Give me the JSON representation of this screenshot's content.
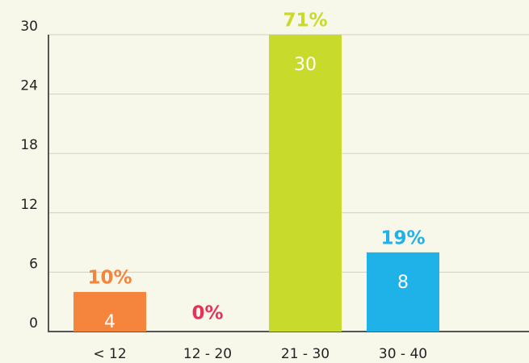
{
  "chart_data": {
    "type": "bar",
    "categories": [
      "< 12",
      "12 - 20",
      "21 - 30",
      "30 - 40"
    ],
    "values": [
      4,
      0,
      30,
      8
    ],
    "value_labels": [
      "10%",
      "0%",
      "71%",
      "19%"
    ],
    "colors": [
      "#f5843c",
      "#e6325a",
      "#c8da2b",
      "#1eb2e8"
    ],
    "ylim": [
      0,
      30
    ],
    "yticks": [
      0,
      6,
      12,
      18,
      24,
      30
    ],
    "grid": true
  }
}
